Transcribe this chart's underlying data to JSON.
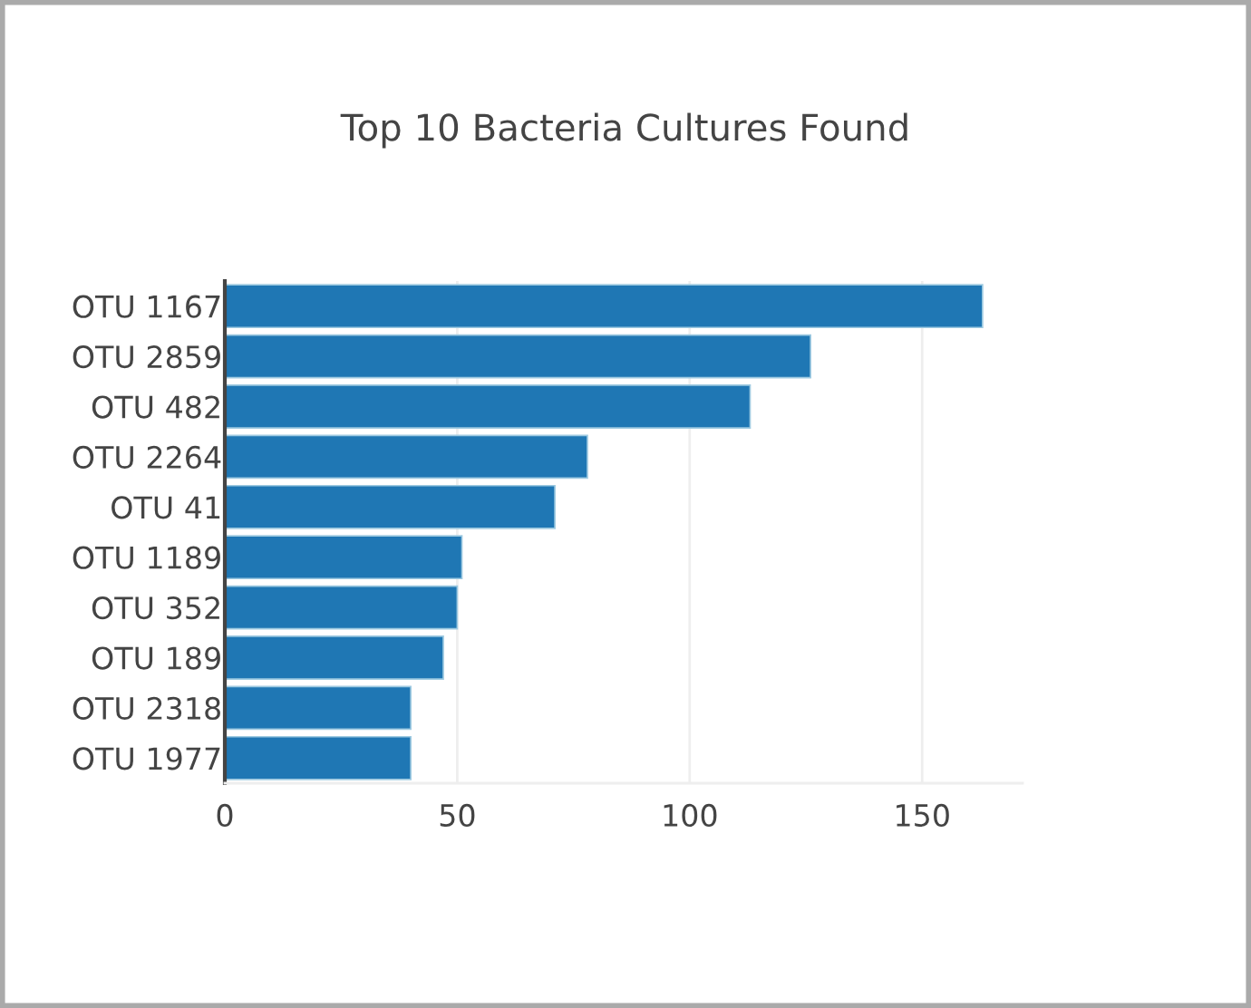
{
  "chart_data": {
    "type": "bar",
    "orientation": "horizontal",
    "title": "Top 10 Bacteria Cultures Found",
    "categories": [
      "OTU 1167",
      "OTU 2859",
      "OTU 482",
      "OTU 2264",
      "OTU 41",
      "OTU 1189",
      "OTU 352",
      "OTU 189",
      "OTU 2318",
      "OTU 1977"
    ],
    "values": [
      163,
      126,
      113,
      78,
      71,
      51,
      50,
      47,
      40,
      40
    ],
    "color": "#1f77b4",
    "xlim": [
      0,
      171.6
    ],
    "xticks": [
      0,
      50,
      100,
      150
    ],
    "grid": "x",
    "legend": false
  }
}
